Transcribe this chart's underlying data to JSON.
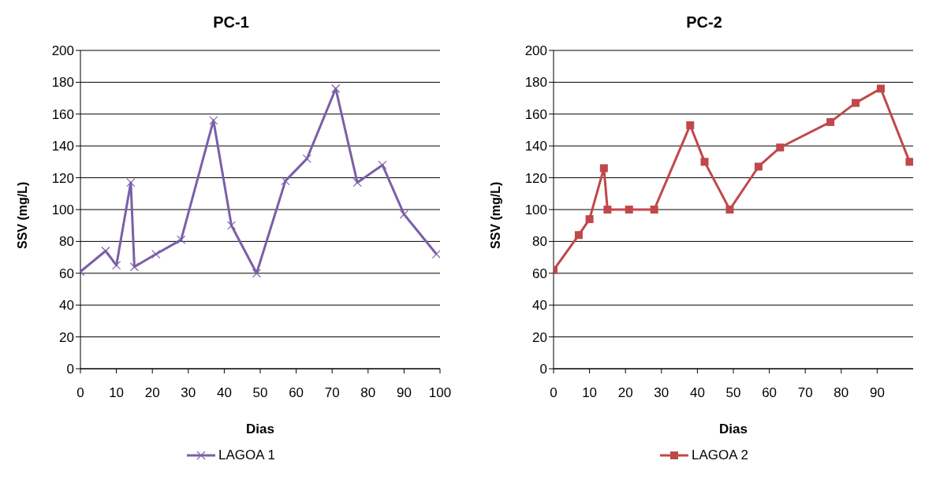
{
  "chart_data": [
    {
      "type": "line",
      "title": "PC-1",
      "xlabel": "Dias",
      "ylabel": "SSV (mg/L)",
      "x": [
        0,
        7,
        10,
        14,
        15,
        21,
        28,
        37,
        42,
        49,
        57,
        63,
        71,
        77,
        84,
        90,
        99
      ],
      "series": [
        {
          "name": "LAGOA 1",
          "color": "#7b5fa8",
          "values": [
            61,
            74,
            65,
            117,
            64,
            72,
            81,
            156,
            90,
            60,
            118,
            132,
            176,
            117,
            128,
            97,
            72
          ]
        }
      ],
      "xlim": [
        0,
        100
      ],
      "xticks": [
        0,
        10,
        20,
        30,
        40,
        50,
        60,
        70,
        80,
        90,
        100
      ],
      "ylim": [
        0,
        200
      ],
      "yticks": [
        0,
        20,
        40,
        60,
        80,
        100,
        120,
        140,
        160,
        180,
        200
      ],
      "grid": "y",
      "legend": "bottom",
      "marker": "cross"
    },
    {
      "type": "line",
      "title": "PC-2",
      "xlabel": "Dias",
      "ylabel": "SSV (mg/L)",
      "x": [
        0,
        7,
        10,
        14,
        15,
        21,
        28,
        38,
        42,
        49,
        57,
        63,
        77,
        84,
        91,
        99
      ],
      "series": [
        {
          "name": "LAGOA 2",
          "color": "#c0484a",
          "values": [
            62,
            84,
            94,
            126,
            100,
            100,
            100,
            153,
            130,
            100,
            127,
            139,
            155,
            167,
            176,
            130
          ]
        }
      ],
      "xlim": [
        0,
        100
      ],
      "xticks": [
        0,
        10,
        20,
        30,
        40,
        50,
        60,
        70,
        80,
        90
      ],
      "ylim": [
        0,
        200
      ],
      "yticks": [
        0,
        20,
        40,
        60,
        80,
        100,
        120,
        140,
        160,
        180,
        200
      ],
      "grid": "y",
      "legend": "bottom",
      "marker": "square"
    }
  ]
}
